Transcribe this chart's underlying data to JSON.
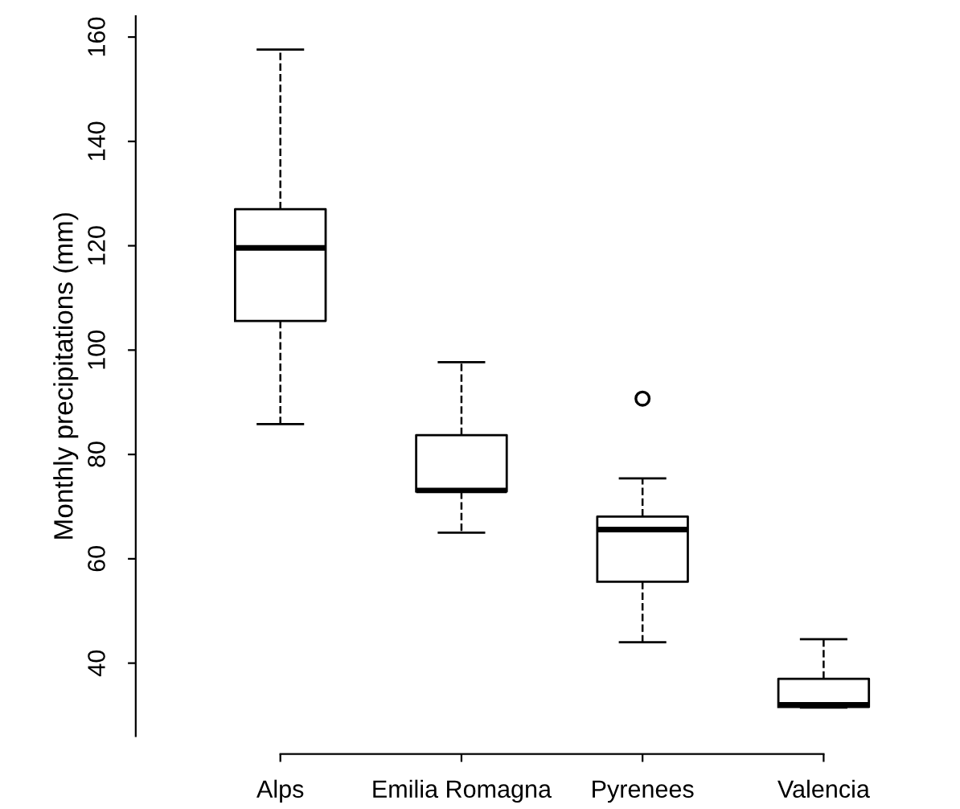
{
  "chart_data": {
    "type": "box",
    "ylabel": "Monthly precipitations (mm)",
    "categories": [
      "Alps",
      "Emilia Romagna",
      "Pyrenees",
      "Valencia"
    ],
    "boxes": [
      {
        "low": 85.8,
        "q1": 105.6,
        "median": 119.6,
        "q3": 127,
        "high": 157.6
      },
      {
        "low": 65,
        "q1": 72.9,
        "median": 73.1,
        "q3": 83.7,
        "high": 97.7
      },
      {
        "low": 44,
        "q1": 55.6,
        "median": 65.6,
        "q3": 68.1,
        "high": 75.4,
        "outliers": [
          90.7
        ]
      },
      {
        "low": 31.5,
        "q1": 31.6,
        "median": 32,
        "q3": 37,
        "high": 44.6
      }
    ],
    "ylim": [
      26,
      164
    ],
    "yticks": [
      40,
      60,
      80,
      100,
      120,
      140,
      160
    ],
    "grid": false,
    "line_style": "dashed"
  }
}
